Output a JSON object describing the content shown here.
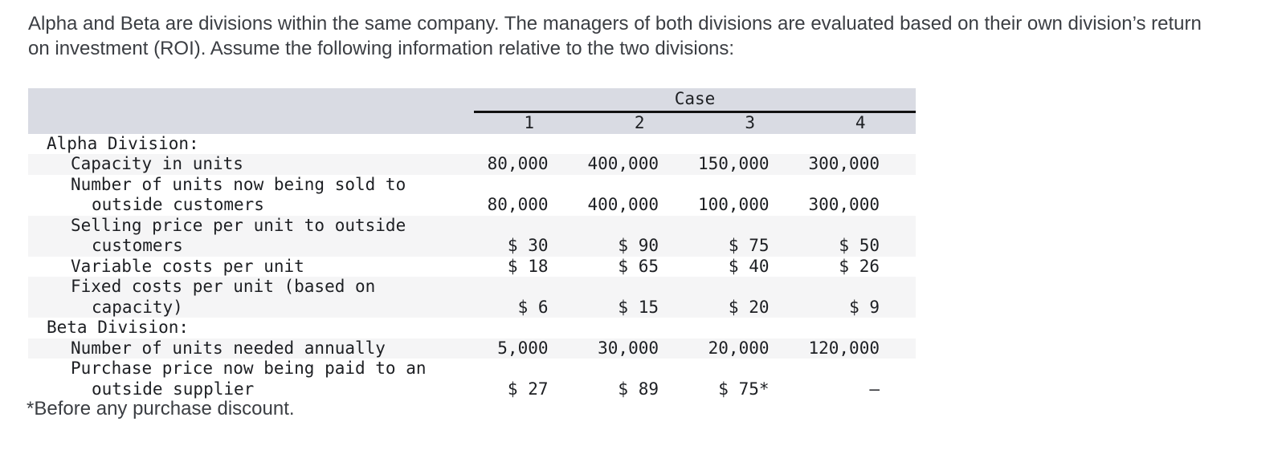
{
  "intro": "Alpha and Beta are divisions within the same company. The managers of both divisions are evaluated based on their own division’s return on investment (ROI). Assume the following information relative to the two divisions:",
  "table": {
    "header": {
      "group_label": "Case",
      "columns": [
        "1",
        "2",
        "3",
        "4"
      ]
    },
    "rows": [
      {
        "label_lines": [
          "Alpha Division:"
        ],
        "indent": 1,
        "striped": false,
        "values": [
          "",
          "",
          "",
          ""
        ]
      },
      {
        "label_lines": [
          "Capacity in units"
        ],
        "indent": 2,
        "striped": true,
        "values": [
          "80,000",
          "400,000",
          "150,000",
          "300,000"
        ]
      },
      {
        "label_lines": [
          "Number of units now being sold to",
          "outside customers"
        ],
        "indent": 2,
        "striped": false,
        "values": [
          "80,000",
          "400,000",
          "100,000",
          "300,000"
        ]
      },
      {
        "label_lines": [
          "Selling price per unit to outside",
          "customers"
        ],
        "indent": 2,
        "striped": true,
        "values": [
          "$ 30",
          "$ 90",
          "$ 75",
          "$ 50"
        ]
      },
      {
        "label_lines": [
          "Variable costs per unit"
        ],
        "indent": 2,
        "striped": false,
        "values": [
          "$ 18",
          "$ 65",
          "$ 40",
          "$ 26"
        ]
      },
      {
        "label_lines": [
          "Fixed costs per unit (based on",
          "capacity)"
        ],
        "indent": 2,
        "striped": true,
        "values": [
          "$ 6",
          "$ 15",
          "$ 20",
          "$ 9"
        ]
      },
      {
        "label_lines": [
          "Beta Division:"
        ],
        "indent": 1,
        "striped": false,
        "values": [
          "",
          "",
          "",
          ""
        ]
      },
      {
        "label_lines": [
          "Number of units needed annually"
        ],
        "indent": 2,
        "striped": true,
        "values": [
          "5,000",
          "30,000",
          "20,000",
          "120,000"
        ]
      },
      {
        "label_lines": [
          "Purchase price now being paid to an",
          "outside supplier"
        ],
        "indent": 2,
        "striped": false,
        "values": [
          "$ 27",
          "$ 89",
          "$ 75*",
          "–"
        ]
      }
    ]
  },
  "footnote": "*Before any purchase discount.",
  "colors": {
    "header_bg": "#d9dbe3",
    "stripe_bg": "#f5f5f6",
    "rule_color": "#111111",
    "table_text": "#1d1f23",
    "body_text": "#3b3e43"
  }
}
